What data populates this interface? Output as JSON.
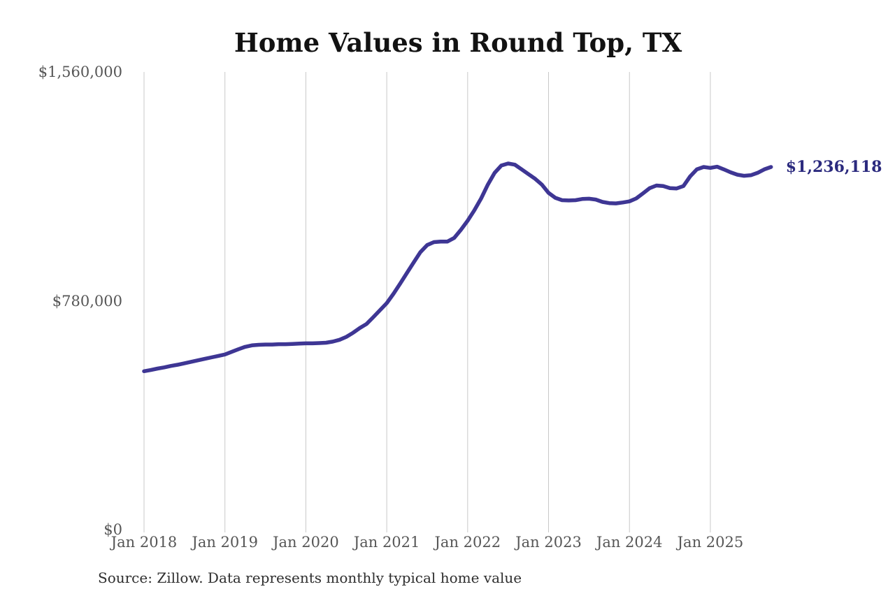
{
  "title": "Home Values in Round Top, TX",
  "latest_value_label": "$1,236,118",
  "source_note": "Source: Zillow. Data represents monthly typical home value",
  "colors": {
    "line": "#3e3694",
    "latest_label": "#2b2a7e",
    "gridline": "#c8c8c8",
    "axis_text": "#565656",
    "title_text": "#121212",
    "source_text": "#2e2e2e"
  },
  "chart_data": {
    "type": "line",
    "title": "Home Values in Round Top, TX",
    "xlabel": "",
    "ylabel": "",
    "x_start": "2018-01",
    "x_interval": "month",
    "x_tick_labels": [
      "Jan 2018",
      "Jan 2019",
      "Jan 2020",
      "Jan 2021",
      "Jan 2022",
      "Jan 2023",
      "Jan 2024",
      "Jan 2025"
    ],
    "y_ticks": [
      0,
      780000,
      1560000
    ],
    "y_tick_labels": [
      "$0",
      "$780,000",
      "$1,560,000"
    ],
    "ylim": [
      0,
      1560000
    ],
    "grid": "vertical-only",
    "legend": "none",
    "annotation": {
      "text": "$1,236,118",
      "value": 1236118
    },
    "series": [
      {
        "name": "Monthly typical home value",
        "values": [
          540000,
          544000,
          549000,
          553000,
          558000,
          562000,
          567000,
          572000,
          577000,
          582000,
          587000,
          592000,
          597000,
          606000,
          615000,
          623000,
          628000,
          630000,
          631000,
          631000,
          632000,
          632000,
          633000,
          634000,
          635000,
          635000,
          636000,
          637000,
          641000,
          647000,
          657000,
          671000,
          687000,
          701000,
          724000,
          748000,
          772000,
          804000,
          839000,
          875000,
          911000,
          946000,
          970000,
          980000,
          982000,
          982000,
          994000,
          1022000,
          1053000,
          1089000,
          1129000,
          1176000,
          1216000,
          1241000,
          1248000,
          1244000,
          1228000,
          1212000,
          1196000,
          1176000,
          1148000,
          1131000,
          1123000,
          1122000,
          1123000,
          1127000,
          1128000,
          1125000,
          1117000,
          1113000,
          1112000,
          1115000,
          1119000,
          1129000,
          1146000,
          1164000,
          1173000,
          1171000,
          1164000,
          1163000,
          1171000,
          1204000,
          1228000,
          1236000,
          1233000,
          1237000,
          1228000,
          1218000,
          1210000,
          1206000,
          1208000,
          1216000,
          1228000,
          1236118
        ]
      }
    ]
  }
}
